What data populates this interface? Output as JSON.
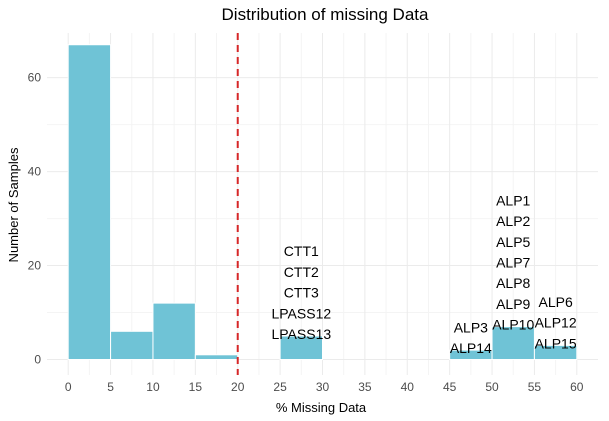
{
  "chart_data": {
    "type": "bar",
    "title": "Distribution of missing Data",
    "xlabel": "% Missing Data",
    "ylabel": "Number of Samples",
    "xlim": [
      -2.5,
      62.5
    ],
    "ylim": [
      -3.3,
      69.5
    ],
    "x_ticks": [
      0,
      5,
      10,
      15,
      20,
      25,
      30,
      35,
      40,
      45,
      50,
      55,
      60
    ],
    "y_ticks": [
      0,
      20,
      40,
      60
    ],
    "bin_width": 5,
    "bins": [
      {
        "x0": 0,
        "x1": 5,
        "count": 67
      },
      {
        "x0": 5,
        "x1": 10,
        "count": 6
      },
      {
        "x0": 10,
        "x1": 15,
        "count": 12
      },
      {
        "x0": 15,
        "x1": 20,
        "count": 1
      },
      {
        "x0": 25,
        "x1": 30,
        "count": 5
      },
      {
        "x0": 45,
        "x1": 50,
        "count": 2
      },
      {
        "x0": 50,
        "x1": 55,
        "count": 7
      },
      {
        "x0": 55,
        "x1": 60,
        "count": 3
      }
    ],
    "threshold_line": {
      "x": 20,
      "color": "#d62728",
      "style": "dashed"
    },
    "bar_color": "#6fc3d6",
    "grid": true,
    "annotations": [
      {
        "x": 27.5,
        "labels": [
          "CTT1",
          "CTT2",
          "CTT3",
          "LPASS12",
          "LPASS13"
        ]
      },
      {
        "x": 47.5,
        "labels": [
          "ALP3",
          "ALP14"
        ]
      },
      {
        "x": 52.5,
        "labels": [
          "ALP1",
          "ALP2",
          "ALP5",
          "ALP7",
          "ALP8",
          "ALP9",
          "ALP10"
        ]
      },
      {
        "x": 57.5,
        "labels": [
          "ALP6",
          "ALP12",
          "ALP15"
        ]
      }
    ]
  }
}
